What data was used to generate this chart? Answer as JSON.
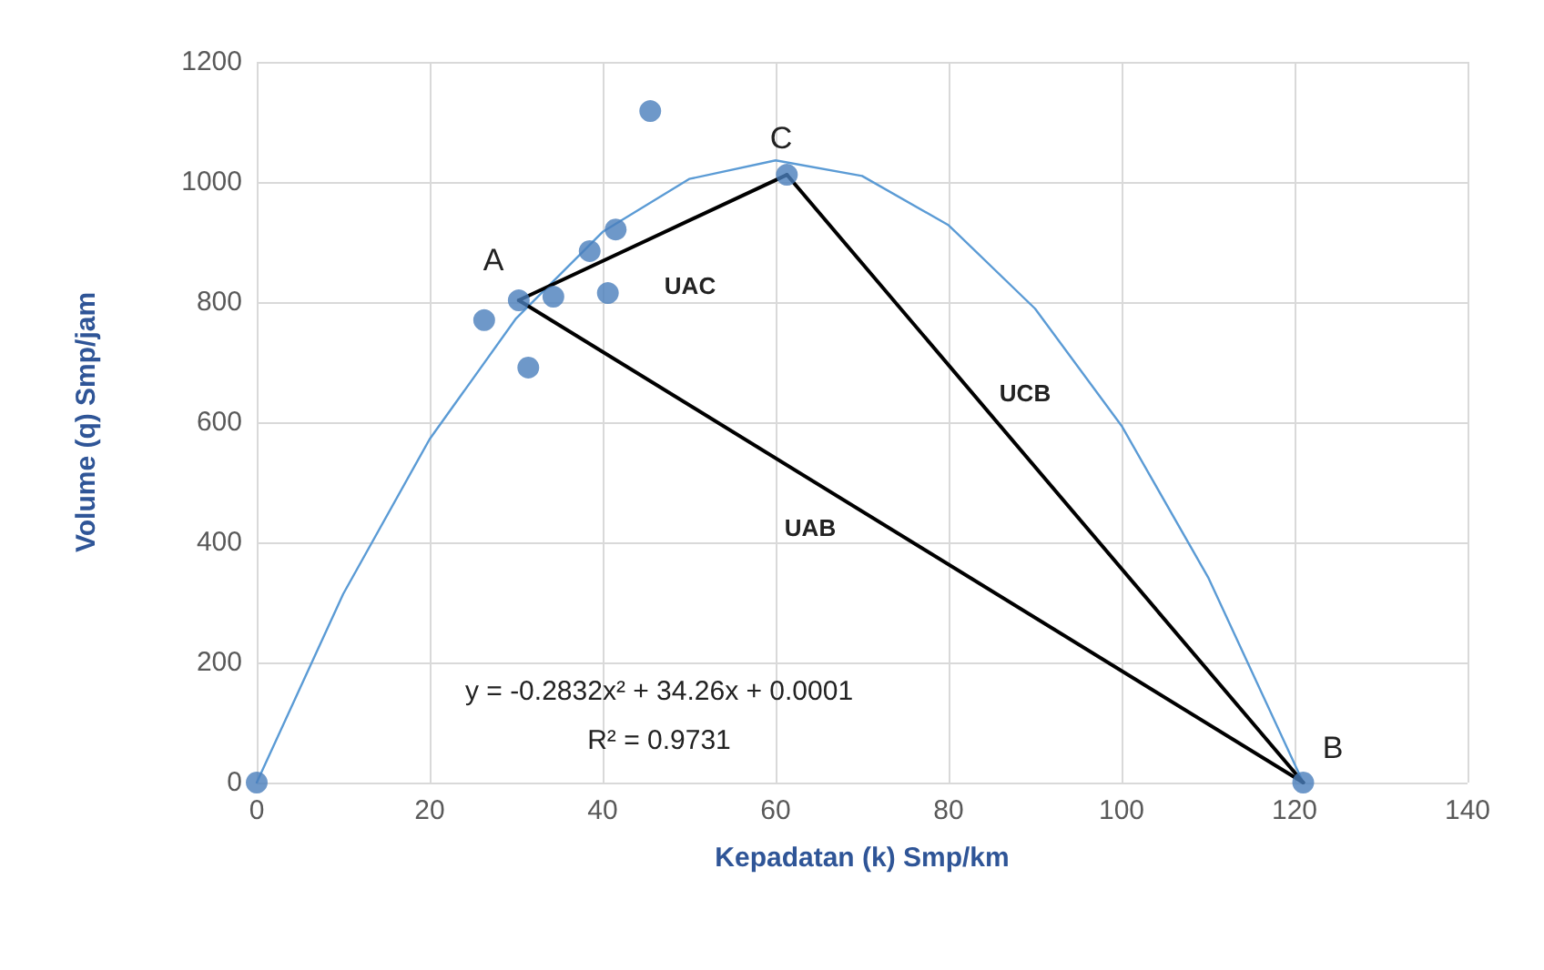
{
  "chart_data": {
    "type": "scatter",
    "xlabel": "Kepadatan (k) Smp/km",
    "ylabel": "Volume (q) Smp/jam",
    "xlim": [
      0,
      140
    ],
    "xticks": [
      0,
      20,
      40,
      60,
      80,
      100,
      120,
      140
    ],
    "ylim": [
      0,
      1200
    ],
    "yticks": [
      0,
      200,
      400,
      600,
      800,
      1000,
      1200
    ],
    "grid": true,
    "marker": "circle",
    "series": [
      {
        "type": "line",
        "color": "#5b9bd5",
        "marker": "none",
        "x": [
          0,
          10,
          20,
          30,
          40,
          50,
          60,
          70,
          80,
          90,
          100,
          110,
          121
        ],
        "values": [
          0,
          314,
          572,
          773,
          917,
          1005,
          1036,
          1010,
          928,
          789,
          594,
          342,
          0
        ]
      },
      {
        "type": "line",
        "color": "#000000",
        "marker": "none",
        "x": [
          30.3,
          61.3
        ],
        "values": [
          803,
          1012
        ]
      },
      {
        "type": "line",
        "color": "#000000",
        "marker": "none",
        "x": [
          61.3,
          121
        ],
        "values": [
          1012,
          0
        ]
      },
      {
        "type": "line",
        "color": "#000000",
        "marker": "none",
        "x": [
          30.3,
          121
        ],
        "values": [
          803,
          0
        ]
      },
      {
        "color": "#4a7ebb",
        "x": [
          0,
          26.3,
          30.3,
          31.4,
          34.3,
          38.5,
          40.6,
          41.5,
          45.5,
          61.3,
          121
        ],
        "values": [
          0,
          770,
          803,
          691,
          809,
          885,
          815,
          921,
          1118,
          1012,
          0
        ]
      }
    ],
    "annotations": [
      "A",
      "C",
      "B",
      "UAC",
      "UCB",
      "UAB",
      "y = -0.2832x² + 34.26x + 0.0001",
      "R² = 0.9731"
    ]
  }
}
